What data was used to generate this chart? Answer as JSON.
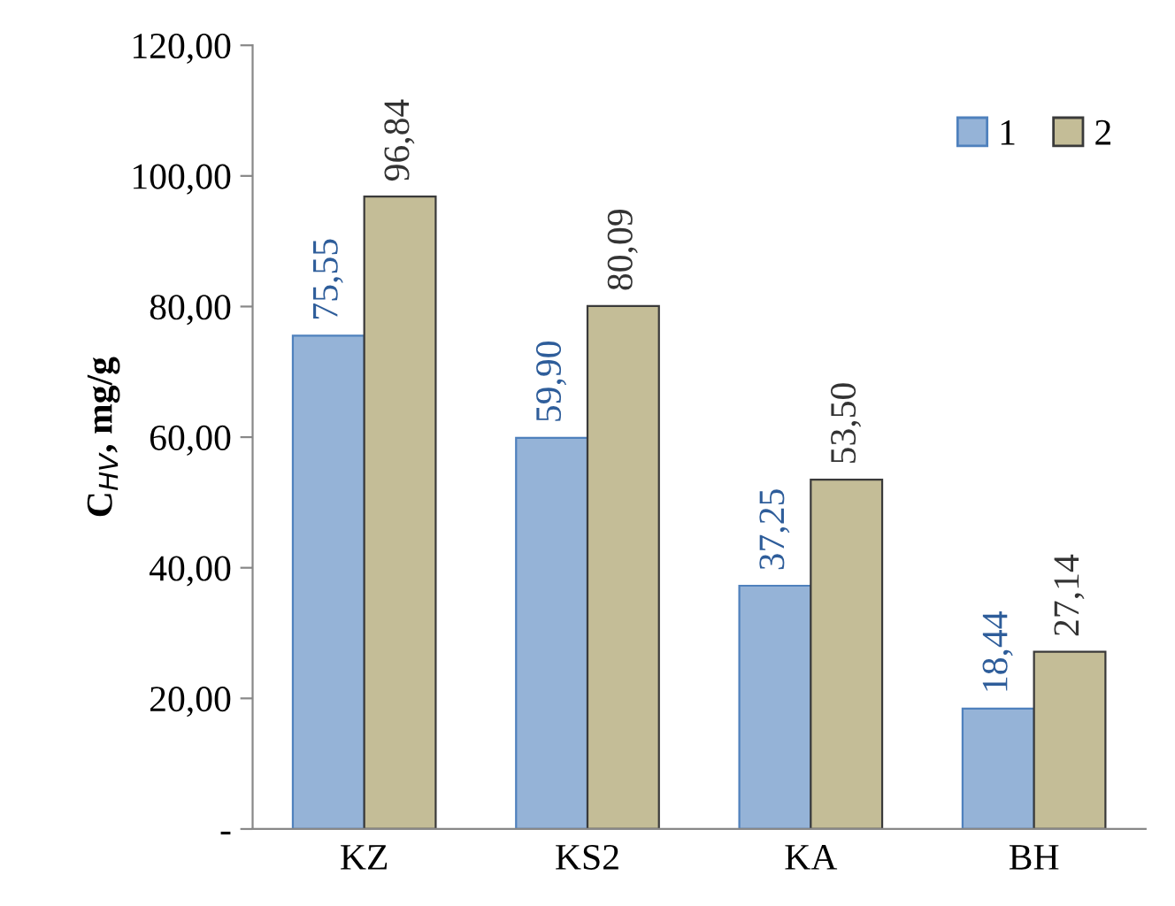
{
  "chart_data": {
    "type": "bar",
    "ylabel": "C$_{HV}$, mg/g",
    "categories": [
      "KZ",
      "KS2",
      "KA",
      "BH"
    ],
    "series": [
      {
        "name": "1",
        "color": "#95b3d7",
        "values": [
          75.55,
          59.9,
          37.25,
          18.44
        ],
        "value_labels": [
          "75,55",
          "59,90",
          "37,25",
          "18,44"
        ]
      },
      {
        "name": "2",
        "color": "#c4bd97",
        "values": [
          96.84,
          80.09,
          53.5,
          27.14
        ],
        "value_labels": [
          "96,84",
          "80,09",
          "53,50",
          "27,14"
        ]
      }
    ],
    "ylim": [
      0,
      120
    ],
    "yticks": [
      {
        "value": 0,
        "label": "-"
      },
      {
        "value": 20,
        "label": "20,00"
      },
      {
        "value": 40,
        "label": "40,00"
      },
      {
        "value": 60,
        "label": "60,00"
      },
      {
        "value": 80,
        "label": "80,00"
      },
      {
        "value": 100,
        "label": "100,00"
      },
      {
        "value": 120,
        "label": "120,00"
      }
    ],
    "legend": "top right",
    "grid": false
  }
}
